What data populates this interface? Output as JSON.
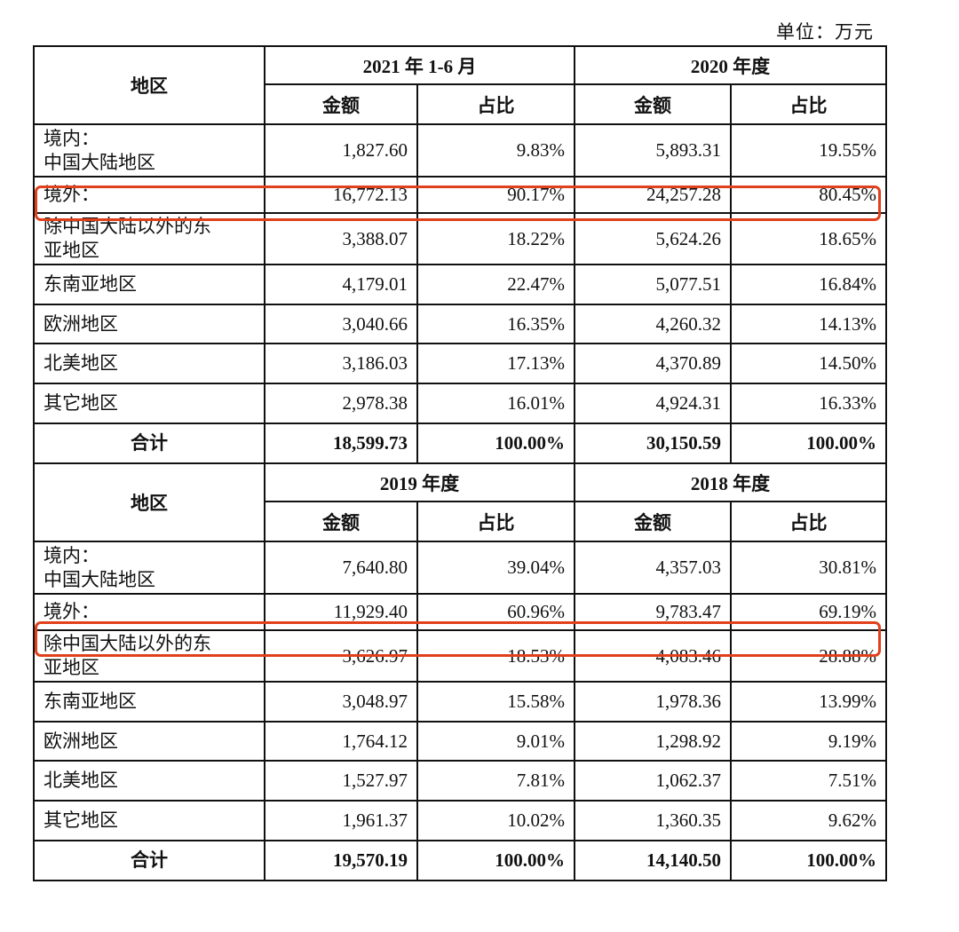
{
  "unit_label": "单位：万元",
  "colors": {
    "highlight": "#e0401c",
    "border": "#111111"
  },
  "blocks": [
    {
      "region_header": "地区",
      "period1": "2021 年 1-6 月",
      "period2": "2020 年度",
      "sub": [
        "金额",
        "占比",
        "金额",
        "占比"
      ],
      "rows": [
        [
          "境内：\n中国大陆地区",
          "1,827.60",
          "9.83%",
          "5,893.31",
          "19.55%"
        ],
        [
          "境外：",
          "16,772.13",
          "90.17%",
          "24,257.28",
          "80.45%"
        ],
        [
          "除中国大陆以外的东\n亚地区",
          "3,388.07",
          "18.22%",
          "5,624.26",
          "18.65%"
        ],
        [
          "东南亚地区",
          "4,179.01",
          "22.47%",
          "5,077.51",
          "16.84%"
        ],
        [
          "欧洲地区",
          "3,040.66",
          "16.35%",
          "4,260.32",
          "14.13%"
        ],
        [
          "北美地区",
          "3,186.03",
          "17.13%",
          "4,370.89",
          "14.50%"
        ],
        [
          "其它地区",
          "2,978.38",
          "16.01%",
          "4,924.31",
          "16.33%"
        ],
        [
          "合计",
          "18,599.73",
          "100.00%",
          "30,150.59",
          "100.00%"
        ]
      ]
    },
    {
      "region_header": "地区",
      "period1": "2019 年度",
      "period2": "2018 年度",
      "sub": [
        "金额",
        "占比",
        "金额",
        "占比"
      ],
      "rows": [
        [
          "境内：\n中国大陆地区",
          "7,640.80",
          "39.04%",
          "4,357.03",
          "30.81%"
        ],
        [
          "境外：",
          "11,929.40",
          "60.96%",
          "9,783.47",
          "69.19%"
        ],
        [
          "除中国大陆以外的东\n亚地区",
          "3,626.97",
          "18.53%",
          "4,083.46",
          "28.88%"
        ],
        [
          "东南亚地区",
          "3,048.97",
          "15.58%",
          "1,978.36",
          "13.99%"
        ],
        [
          "欧洲地区",
          "1,764.12",
          "9.01%",
          "1,298.92",
          "9.19%"
        ],
        [
          "北美地区",
          "1,527.97",
          "7.81%",
          "1,062.37",
          "7.51%"
        ],
        [
          "其它地区",
          "1,961.37",
          "10.02%",
          "1,360.35",
          "9.62%"
        ],
        [
          "合计",
          "19,570.19",
          "100.00%",
          "14,140.50",
          "100.00%"
        ]
      ]
    }
  ]
}
